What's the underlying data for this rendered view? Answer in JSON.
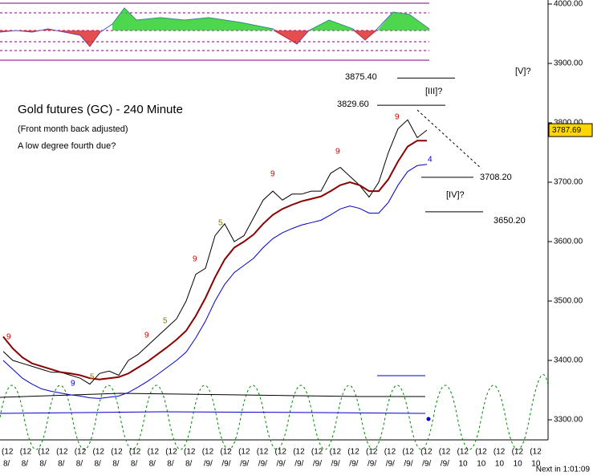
{
  "chart_data": {
    "type": "line",
    "title": "Gold futures (GC) - 240 Minute",
    "subtitle": "(Front month back adjusted)",
    "note": "A low degree fourth due?",
    "series": [
      {
        "name": "close",
        "color": "#000000",
        "values": [
          3415,
          3400,
          3395,
          3390,
          3385,
          3380,
          3380,
          3375,
          3370,
          3360,
          3378,
          3382,
          3375,
          3400,
          3410,
          3425,
          3440,
          3455,
          3470,
          3500,
          3545,
          3555,
          3610,
          3630,
          3600,
          3610,
          3640,
          3670,
          3685,
          3670,
          3680,
          3680,
          3685,
          3685,
          3715,
          3725,
          3710,
          3695,
          3675,
          3700,
          3750,
          3790,
          3805,
          3775,
          3787.69
        ]
      },
      {
        "name": "average",
        "color": "#8b0000",
        "values": [
          3440,
          3420,
          3405,
          3395,
          3390,
          3385,
          3380,
          3378,
          3375,
          3370,
          3368,
          3370,
          3372,
          3378,
          3388,
          3398,
          3410,
          3422,
          3435,
          3450,
          3475,
          3505,
          3540,
          3570,
          3590,
          3600,
          3612,
          3630,
          3645,
          3655,
          3662,
          3668,
          3672,
          3676,
          3685,
          3695,
          3700,
          3695,
          3685,
          3685,
          3705,
          3735,
          3760,
          3770,
          3770
        ]
      },
      {
        "name": "lower",
        "color": "#0000cc",
        "values": [
          3400,
          3385,
          3370,
          3360,
          3352,
          3348,
          3345,
          3342,
          3340,
          3337,
          3336,
          3338,
          3340,
          3346,
          3355,
          3365,
          3376,
          3388,
          3400,
          3414,
          3438,
          3466,
          3500,
          3528,
          3548,
          3560,
          3572,
          3590,
          3605,
          3615,
          3622,
          3628,
          3632,
          3636,
          3645,
          3655,
          3660,
          3656,
          3648,
          3648,
          3666,
          3695,
          3718,
          3728,
          3730
        ]
      }
    ],
    "ylim": [
      3300,
      4000
    ],
    "yticks": [
      {
        "value": 3300,
        "label": "3300.00"
      },
      {
        "value": 3400,
        "label": "3400.00"
      },
      {
        "value": 3500,
        "label": "3500.00"
      },
      {
        "value": 3600,
        "label": "3600.00"
      },
      {
        "value": 3700,
        "label": "3700.00"
      },
      {
        "value": 3800,
        "label": "3800.00"
      },
      {
        "value": 3900,
        "label": "3900.00"
      },
      {
        "value": 4000,
        "label": "4000.00"
      }
    ],
    "last_price": {
      "value": 3787.69,
      "label": "3787.69"
    },
    "levels": [
      {
        "value": 3875.4,
        "label": "3875.40"
      },
      {
        "value": 3829.6,
        "label": "3829.60"
      },
      {
        "value": 3708.2,
        "label": "3708.20"
      },
      {
        "value": 3650.2,
        "label": "3650.20"
      }
    ],
    "wave_labels": [
      "[V]?",
      "[III]?",
      "[IV]?"
    ],
    "count_labels": [
      "9",
      "9",
      "9",
      "9",
      "9",
      "9",
      "5",
      "5",
      "5",
      "4",
      "9"
    ],
    "x_labels_top": [
      "(12",
      "(12",
      "(12",
      "(12",
      "(12",
      "(12",
      "(12",
      "(12",
      "(12",
      "(12",
      "(12",
      "(12",
      "(12",
      "(12",
      "(12",
      "(12",
      "(12",
      "(12",
      "(12",
      "(12",
      "(12",
      "(12",
      "(12",
      "(12",
      "(12",
      "(12",
      "(12",
      "(12",
      "(12",
      "(12"
    ],
    "x_labels": [
      "8/",
      "8/",
      "8/",
      "8/",
      "8/",
      "8/",
      "8/",
      "8/",
      "8/",
      "8/",
      "8/",
      "/9/",
      "/9/",
      "/9/",
      "/9/",
      "/9/",
      "/9/",
      "/9/",
      "/9/",
      "/9/",
      "/9/",
      "/9/",
      "/9/",
      "/9/",
      "/9/",
      "10",
      "10",
      "10",
      "10",
      "10"
    ],
    "footer": "Next in 1:01:09"
  }
}
